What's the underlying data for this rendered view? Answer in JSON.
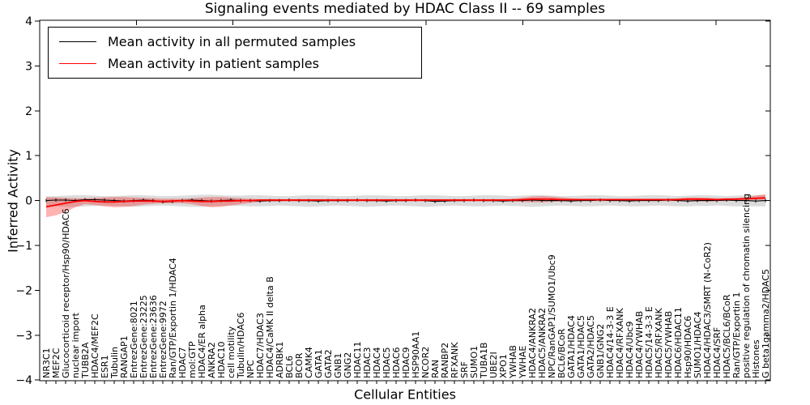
{
  "chart_data": {
    "type": "line",
    "title": "Signaling events mediated by HDAC Class II -- 69 samples",
    "xlabel": "Cellular Entities",
    "ylabel": "Inferred Activity",
    "ylim": [
      -4,
      4
    ],
    "yticks": [
      -4,
      -3,
      -2,
      -1,
      0,
      1,
      2,
      3,
      4
    ],
    "x_tick_rotation": 90,
    "grid": false,
    "legend_position": "upper left",
    "categories": [
      "NR3C1",
      "MEF2C",
      "Glucocorticoid receptor/Hsp90/HDAC6",
      "nuclear import",
      "TUBB2A",
      "HDAC4/MEF2C",
      "ESR1",
      "Tubulin",
      "RANGAP1",
      "EntrezGene:8021",
      "EntrezGene:23225",
      "EntrezGene:23636",
      "EntrezGene:9972",
      "Ran/GTP/Exportin 1/HDAC4",
      "HDAC7",
      "mol:GTP",
      "HDAC4/ER alpha",
      "ANKRA2",
      "HDAC10",
      "cell motility",
      "Tubulin/HDAC6",
      "NPC",
      "HDAC7/HDAC3",
      "HDAC4/CaMK II delta B",
      "ADRBK1",
      "BCL6",
      "BCOR",
      "CAMK4",
      "GATA1",
      "GATA2",
      "GNB1",
      "GNG2",
      "HDAC11",
      "HDAC3",
      "HDAC4",
      "HDAC5",
      "HDAC6",
      "HDAC9",
      "HSP90AA1",
      "NCOR2",
      "RAN",
      "RANBP2",
      "RFXANK",
      "SRF",
      "SUMO1",
      "TUBA1B",
      "UBE2I",
      "XPO1",
      "YWHAB",
      "YWHAE",
      "HDAC4/ANKRA2",
      "HDAC5/ANKRA2",
      "NPC/RanGAP1/SUMO1/Ubc9",
      "BCL6/BCoR",
      "GATA1/HDAC4",
      "GATA1/HDAC5",
      "GATA2/HDAC5",
      "GNB1/GNG2",
      "HDAC4/14-3-3 E",
      "HDAC4/RFXANK",
      "HDAC4/Ubc9",
      "HDAC4/YWHAB",
      "HDAC5/14-3-3 E",
      "HDAC5/RFXANK",
      "HDAC5/YWHAB",
      "HDAC6/HDAC11",
      "Hsp90/HDAC6",
      "SUMO1/HDAC4",
      "HDAC4/HDAC3/SMRT (N-CoR2)",
      "HDAC4/SRF",
      "HDAC5/BCL6/BCoR",
      "Ran/GTP/Exportin 1",
      "positive regulation of chromatin silencing",
      "Histones",
      "G beta1gamma2/HDAC5"
    ],
    "series": [
      {
        "name": "Mean activity in all permuted samples",
        "color": "#000000",
        "values": [
          0.0,
          0.01,
          0.01,
          0.0,
          0.02,
          0.02,
          0.01,
          0.0,
          -0.01,
          0.0,
          0.01,
          0.0,
          -0.03,
          -0.02,
          0.0,
          0.01,
          0.0,
          -0.01,
          0.0,
          0.01,
          0.0,
          0.0,
          -0.01,
          0.0,
          0.0,
          0.01,
          0.0,
          0.0,
          -0.01,
          0.0,
          0.0,
          0.0,
          0.01,
          0.0,
          0.0,
          -0.01,
          0.0,
          0.0,
          0.01,
          0.0,
          -0.02,
          -0.01,
          0.0,
          0.0,
          0.01,
          0.0,
          0.0,
          -0.01,
          0.0,
          0.0,
          0.01,
          0.0,
          0.0,
          0.0,
          -0.01,
          0.0,
          0.0,
          0.01,
          0.0,
          0.0,
          -0.01,
          0.0,
          0.0,
          0.0,
          0.01,
          0.0,
          -0.01,
          0.0,
          0.0,
          0.0,
          0.01,
          0.0,
          0.0,
          -0.01,
          0.0
        ]
      },
      {
        "name": "Mean activity in patient samples",
        "color": "#ff0000",
        "values": [
          -0.14,
          -0.1,
          -0.06,
          -0.02,
          0.0,
          -0.02,
          -0.03,
          -0.03,
          -0.02,
          -0.01,
          -0.01,
          -0.01,
          -0.02,
          -0.01,
          0.0,
          -0.01,
          -0.02,
          -0.02,
          -0.01,
          -0.01,
          0.0,
          0.0,
          0.01,
          0.01,
          0.01,
          0.01,
          0.01,
          0.01,
          0.01,
          0.01,
          0.01,
          0.01,
          0.01,
          0.01,
          0.01,
          0.01,
          0.01,
          0.01,
          0.01,
          0.01,
          0.01,
          0.01,
          0.01,
          0.01,
          0.01,
          0.01,
          0.01,
          0.01,
          0.01,
          0.02,
          0.03,
          0.03,
          0.03,
          0.02,
          0.02,
          0.02,
          0.02,
          0.02,
          0.02,
          0.02,
          0.02,
          0.02,
          0.02,
          0.02,
          0.02,
          0.02,
          0.03,
          0.03,
          0.03,
          0.02,
          0.03,
          0.03,
          0.04,
          0.05,
          0.06
        ]
      }
    ],
    "bands": [
      {
        "name": "permuted samples range",
        "color": "rgba(130,130,130,0.28)",
        "upper": [
          0.09,
          0.1,
          0.11,
          0.12,
          0.12,
          0.11,
          0.1,
          0.1,
          0.11,
          0.12,
          0.12,
          0.11,
          0.1,
          0.1,
          0.11,
          0.12,
          0.13,
          0.13,
          0.12,
          0.11,
          0.11,
          0.12,
          0.12,
          0.11,
          0.1,
          0.1,
          0.11,
          0.12,
          0.12,
          0.11,
          0.1,
          0.1,
          0.11,
          0.12,
          0.12,
          0.11,
          0.1,
          0.1,
          0.11,
          0.12,
          0.12,
          0.11,
          0.1,
          0.1,
          0.11,
          0.12,
          0.12,
          0.11,
          0.1,
          0.11,
          0.12,
          0.12,
          0.11,
          0.1,
          0.1,
          0.11,
          0.12,
          0.12,
          0.11,
          0.1,
          0.1,
          0.11,
          0.12,
          0.12,
          0.11,
          0.1,
          0.11,
          0.12,
          0.12,
          0.11,
          0.1,
          0.11,
          0.12,
          0.12,
          0.12
        ],
        "lower": [
          -0.12,
          -0.13,
          -0.14,
          -0.14,
          -0.13,
          -0.12,
          -0.11,
          -0.12,
          -0.13,
          -0.14,
          -0.13,
          -0.12,
          -0.11,
          -0.12,
          -0.13,
          -0.14,
          -0.14,
          -0.13,
          -0.12,
          -0.11,
          -0.12,
          -0.13,
          -0.13,
          -0.12,
          -0.11,
          -0.12,
          -0.13,
          -0.14,
          -0.13,
          -0.12,
          -0.11,
          -0.12,
          -0.13,
          -0.14,
          -0.13,
          -0.12,
          -0.11,
          -0.12,
          -0.13,
          -0.14,
          -0.13,
          -0.12,
          -0.11,
          -0.12,
          -0.13,
          -0.13,
          -0.12,
          -0.11,
          -0.12,
          -0.13,
          -0.14,
          -0.13,
          -0.12,
          -0.11,
          -0.12,
          -0.13,
          -0.13,
          -0.12,
          -0.11,
          -0.12,
          -0.13,
          -0.13,
          -0.12,
          -0.11,
          -0.12,
          -0.13,
          -0.13,
          -0.12,
          -0.12,
          -0.11,
          -0.12,
          -0.13,
          -0.13,
          -0.13,
          -0.13
        ]
      },
      {
        "name": "patient samples range",
        "color": "rgba(255,0,0,0.30)",
        "upper": [
          0.08,
          0.07,
          0.06,
          0.05,
          0.05,
          0.06,
          0.07,
          0.08,
          0.08,
          0.07,
          0.06,
          0.05,
          0.04,
          0.04,
          0.04,
          0.05,
          0.07,
          0.08,
          0.08,
          0.07,
          0.05,
          0.04,
          0.03,
          0.03,
          0.03,
          0.03,
          0.03,
          0.03,
          0.03,
          0.03,
          0.03,
          0.03,
          0.03,
          0.03,
          0.03,
          0.03,
          0.03,
          0.03,
          0.03,
          0.03,
          0.03,
          0.03,
          0.03,
          0.03,
          0.03,
          0.03,
          0.03,
          0.03,
          0.04,
          0.06,
          0.09,
          0.1,
          0.09,
          0.07,
          0.05,
          0.04,
          0.04,
          0.04,
          0.04,
          0.04,
          0.04,
          0.04,
          0.04,
          0.04,
          0.04,
          0.05,
          0.07,
          0.07,
          0.06,
          0.05,
          0.05,
          0.06,
          0.08,
          0.11,
          0.14
        ],
        "lower": [
          -0.37,
          -0.33,
          -0.25,
          -0.15,
          -0.08,
          -0.1,
          -0.13,
          -0.15,
          -0.14,
          -0.12,
          -0.09,
          -0.07,
          -0.06,
          -0.06,
          -0.06,
          -0.08,
          -0.12,
          -0.15,
          -0.14,
          -0.11,
          -0.08,
          -0.05,
          -0.03,
          -0.02,
          -0.02,
          -0.02,
          -0.02,
          -0.02,
          -0.02,
          -0.02,
          -0.02,
          -0.02,
          -0.02,
          -0.02,
          -0.02,
          -0.02,
          -0.02,
          -0.02,
          -0.02,
          -0.02,
          -0.02,
          -0.02,
          -0.02,
          -0.02,
          -0.02,
          -0.02,
          -0.02,
          -0.02,
          -0.02,
          -0.03,
          -0.04,
          -0.04,
          -0.03,
          -0.02,
          -0.01,
          -0.01,
          -0.01,
          -0.01,
          -0.01,
          -0.01,
          -0.01,
          -0.01,
          -0.01,
          -0.01,
          -0.01,
          -0.01,
          -0.02,
          -0.02,
          -0.02,
          -0.01,
          -0.01,
          0.0,
          0.0,
          0.01,
          0.02
        ]
      }
    ]
  },
  "legend": {
    "items": [
      {
        "label": "Mean activity in all permuted samples",
        "color": "#000000"
      },
      {
        "label": "Mean activity in patient samples",
        "color": "#ff0000"
      }
    ]
  },
  "colors": {
    "frame": "#000000",
    "background": "#ffffff"
  }
}
